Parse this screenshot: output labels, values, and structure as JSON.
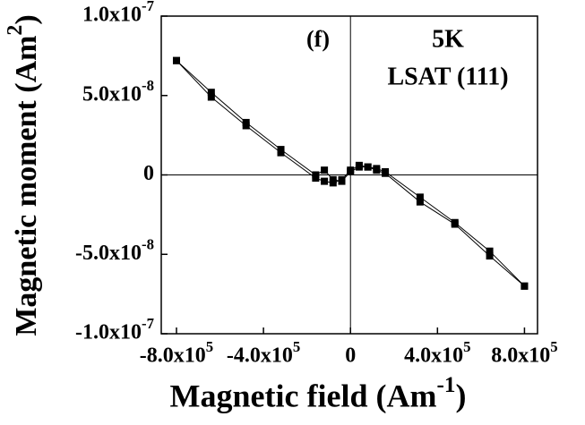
{
  "chart_data": {
    "type": "line",
    "xlabel": "Magnetic field (Am-1)",
    "ylabel": "Magnetic moment (Am2)",
    "annotations": [
      "(f)",
      "5K",
      "LSAT (111)"
    ],
    "xlim": [
      -870000,
      860000
    ],
    "ylim": [
      -1e-07,
      1e-07
    ],
    "xticks": [
      {
        "value": -800000,
        "label": "-8.0x105"
      },
      {
        "value": -400000,
        "label": "-4.0x105"
      },
      0,
      {
        "value": 400000,
        "label": "4.0x105"
      },
      {
        "value": 800000,
        "label": "8.0x105"
      }
    ],
    "yticks": [
      {
        "value": -1e-07,
        "label": "-1.0x10-7"
      },
      {
        "value": -5e-08,
        "label": "-5.0x10-8"
      },
      0,
      {
        "value": 5e-08,
        "label": "5.0x10-8"
      },
      {
        "value": 1e-07,
        "label": "1.0x10-7"
      }
    ],
    "zero_lines": true,
    "x": [
      -800000,
      -640000,
      -480000,
      -320000,
      -160000,
      -120000,
      -80000,
      -40000,
      0,
      40000,
      80000,
      120000,
      160000,
      320000,
      480000,
      640000,
      800000
    ],
    "series": [
      {
        "color": "#000000",
        "values": [
          7.2e-08,
          5.2e-08,
          3.3e-08,
          1.6e-08,
          0,
          3e-09,
          -3e-09,
          -4e-09,
          2e-09,
          5e-09,
          5e-09,
          4e-09,
          2e-09,
          -1.4e-08,
          -3e-08,
          -4.8e-08,
          -7e-08
        ]
      },
      {
        "color": "#000000",
        "values": [
          7.2e-08,
          4.9e-08,
          3.1e-08,
          1.4e-08,
          -2e-09,
          -4e-09,
          -5e-09,
          -3e-09,
          3e-09,
          6e-09,
          5e-09,
          3e-09,
          1e-09,
          -1.7e-08,
          -3.1e-08,
          -5.1e-08,
          -7e-08
        ]
      }
    ]
  }
}
